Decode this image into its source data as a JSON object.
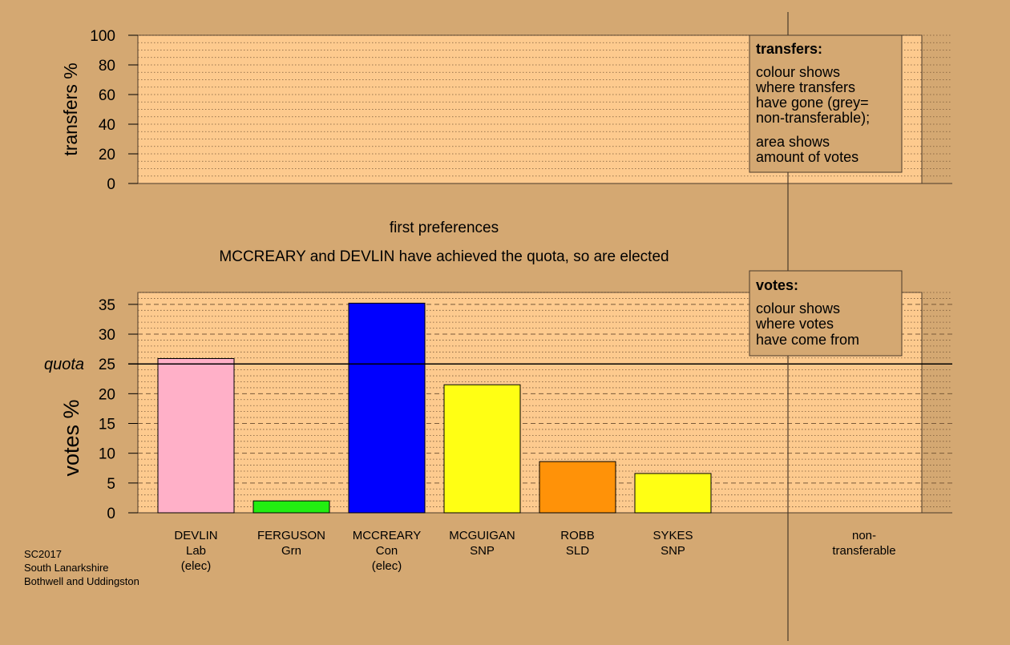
{
  "colors": {
    "background": "#d4a872",
    "plot_fill": "#fdca8e",
    "grid": "#7a5a3a",
    "legend_fill": "#d4a872"
  },
  "transfers_legend": {
    "title": "transfers:",
    "lines1": [
      "colour shows",
      "where transfers",
      "have gone (grey=",
      "non-transferable);"
    ],
    "lines2": [
      "area shows",
      "amount of votes"
    ]
  },
  "votes_legend": {
    "title": "votes:",
    "lines": [
      "colour shows",
      "where votes",
      "have come from"
    ]
  },
  "stage_label": "first preferences",
  "status_message": "MCCREARY and DEVLIN have achieved the quota, so are elected",
  "quota_label": "quota",
  "footer": [
    "SC2017",
    "South Lanarkshire",
    "Bothwell and Uddingston"
  ],
  "chart_data": [
    {
      "type": "area",
      "ylabel": "transfers %",
      "ylim": [
        0,
        100
      ],
      "yticks": [
        0,
        20,
        40,
        60,
        80,
        100
      ],
      "grid": true,
      "series": []
    },
    {
      "type": "bar",
      "ylabel": "votes %",
      "ylim": [
        0,
        37
      ],
      "yticks": [
        0,
        5,
        10,
        15,
        20,
        25,
        30,
        35
      ],
      "grid": true,
      "quota": 25,
      "categories": [
        {
          "name": "DEVLIN",
          "party": "Lab",
          "status": "(elec)",
          "value": 25.9,
          "color": "#ffb0c8"
        },
        {
          "name": "FERGUSON",
          "party": "Grn",
          "status": "",
          "value": 2.0,
          "color": "#22ee11"
        },
        {
          "name": "MCCREARY",
          "party": "Con",
          "status": "(elec)",
          "value": 35.2,
          "color": "#0000ff"
        },
        {
          "name": "MCGUIGAN",
          "party": "SNP",
          "status": "",
          "value": 21.5,
          "color": "#ffff14"
        },
        {
          "name": "ROBB",
          "party": "SLD",
          "status": "",
          "value": 8.6,
          "color": "#ff9208"
        },
        {
          "name": "SYKES",
          "party": "SNP",
          "status": "",
          "value": 6.6,
          "color": "#ffff14"
        }
      ],
      "nontransferable": {
        "label_lines": [
          "non-",
          "transferable"
        ],
        "value": 0
      }
    }
  ]
}
